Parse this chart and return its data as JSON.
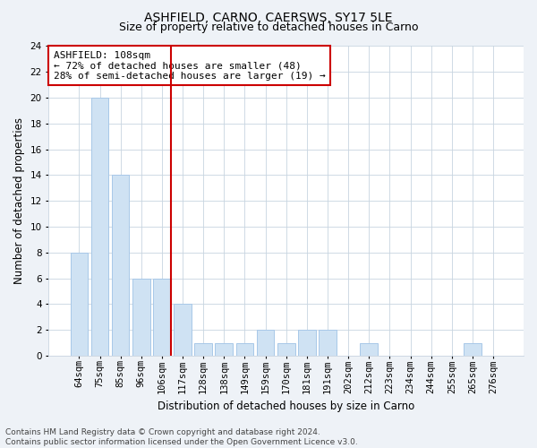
{
  "title": "ASHFIELD, CARNO, CAERSWS, SY17 5LE",
  "subtitle": "Size of property relative to detached houses in Carno",
  "xlabel": "Distribution of detached houses by size in Carno",
  "ylabel": "Number of detached properties",
  "bar_labels": [
    "64sqm",
    "75sqm",
    "85sqm",
    "96sqm",
    "106sqm",
    "117sqm",
    "128sqm",
    "138sqm",
    "149sqm",
    "159sqm",
    "170sqm",
    "181sqm",
    "191sqm",
    "202sqm",
    "212sqm",
    "223sqm",
    "234sqm",
    "244sqm",
    "255sqm",
    "265sqm",
    "276sqm"
  ],
  "bar_values": [
    8,
    20,
    14,
    6,
    6,
    4,
    1,
    1,
    1,
    2,
    1,
    2,
    2,
    0,
    1,
    0,
    0,
    0,
    0,
    1,
    0
  ],
  "bar_color": "#cfe2f3",
  "bar_edgecolor": "#a8c8e8",
  "ylim": [
    0,
    24
  ],
  "yticks": [
    0,
    2,
    4,
    6,
    8,
    10,
    12,
    14,
    16,
    18,
    20,
    22,
    24
  ],
  "ashfield_bar_index": 4,
  "annotation_line1": "ASHFIELD: 108sqm",
  "annotation_line2": "← 72% of detached houses are smaller (48)",
  "annotation_line3": "28% of semi-detached houses are larger (19) →",
  "vline_color": "#cc0000",
  "annotation_box_edgecolor": "#cc0000",
  "footer_text": "Contains HM Land Registry data © Crown copyright and database right 2024.\nContains public sector information licensed under the Open Government Licence v3.0.",
  "title_fontsize": 10,
  "subtitle_fontsize": 9,
  "xlabel_fontsize": 8.5,
  "ylabel_fontsize": 8.5,
  "annotation_fontsize": 8,
  "tick_fontsize": 7.5,
  "footer_fontsize": 6.5,
  "background_color": "#eef2f7",
  "plot_background_color": "#ffffff",
  "grid_color": "#c8d4e0"
}
